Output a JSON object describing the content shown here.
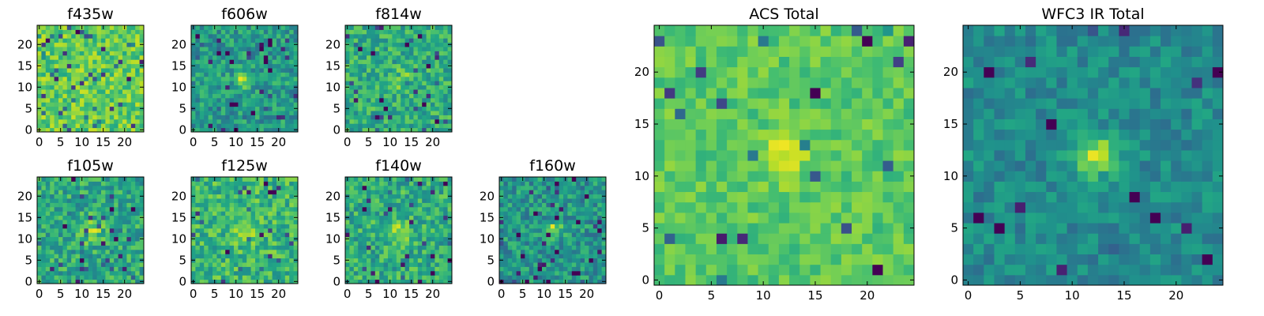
{
  "chart_data": [
    {
      "type": "heatmap",
      "title": "f435w",
      "size": [
        25,
        25
      ],
      "xticks": [
        "0",
        "5",
        "10",
        "15",
        "20"
      ],
      "yticks": [
        "0",
        "5",
        "10",
        "15",
        "20"
      ],
      "xlim": [
        -0.5,
        24.5
      ],
      "ylim": [
        -0.5,
        24.5
      ],
      "colormap": "viridis",
      "noise_level": 0.76,
      "noise_spread": 0.16,
      "noise_dark_fraction": 0.08,
      "peak": {
        "x": 12,
        "y": 12,
        "amplitude": 0.02,
        "sigma": 1.8
      },
      "grid": false
    },
    {
      "type": "heatmap",
      "title": "f606w",
      "size": [
        25,
        25
      ],
      "xticks": [
        "0",
        "5",
        "10",
        "15",
        "20"
      ],
      "yticks": [
        "0",
        "5",
        "10",
        "15",
        "20"
      ],
      "xlim": [
        -0.5,
        24.5
      ],
      "ylim": [
        -0.5,
        24.5
      ],
      "colormap": "viridis",
      "noise_level": 0.54,
      "noise_spread": 0.17,
      "noise_dark_fraction": 0.07,
      "peak": {
        "x": 12,
        "y": 12,
        "amplitude": 0.35,
        "sigma": 1.4
      },
      "grid": false
    },
    {
      "type": "heatmap",
      "title": "f814w",
      "size": [
        25,
        25
      ],
      "xticks": [
        "0",
        "5",
        "10",
        "15",
        "20"
      ],
      "yticks": [
        "0",
        "5",
        "10",
        "15",
        "20"
      ],
      "xlim": [
        -0.5,
        24.5
      ],
      "ylim": [
        -0.5,
        24.5
      ],
      "colormap": "viridis",
      "noise_level": 0.62,
      "noise_spread": 0.17,
      "noise_dark_fraction": 0.06,
      "peak": {
        "x": 12,
        "y": 12,
        "amplitude": 0.3,
        "sigma": 1.4
      },
      "grid": false
    },
    {
      "type": "heatmap",
      "title": "f105w",
      "size": [
        25,
        25
      ],
      "xticks": [
        "0",
        "5",
        "10",
        "15",
        "20"
      ],
      "yticks": [
        "0",
        "5",
        "10",
        "15",
        "20"
      ],
      "xlim": [
        -0.5,
        24.5
      ],
      "ylim": [
        -0.5,
        24.5
      ],
      "colormap": "viridis",
      "noise_level": 0.6,
      "noise_spread": 0.18,
      "noise_dark_fraction": 0.05,
      "peak": {
        "x": 12,
        "y": 12,
        "amplitude": 0.3,
        "sigma": 1.8
      },
      "grid": false
    },
    {
      "type": "heatmap",
      "title": "f125w",
      "size": [
        25,
        25
      ],
      "xticks": [
        "0",
        "5",
        "10",
        "15",
        "20"
      ],
      "yticks": [
        "0",
        "5",
        "10",
        "15",
        "20"
      ],
      "xlim": [
        -0.5,
        24.5
      ],
      "ylim": [
        -0.5,
        24.5
      ],
      "colormap": "viridis",
      "noise_level": 0.66,
      "noise_spread": 0.18,
      "noise_dark_fraction": 0.04,
      "peak": {
        "x": 12,
        "y": 12,
        "amplitude": 0.3,
        "sigma": 1.8
      },
      "grid": false
    },
    {
      "type": "heatmap",
      "title": "f140w",
      "size": [
        25,
        25
      ],
      "xticks": [
        "0",
        "5",
        "10",
        "15",
        "20"
      ],
      "yticks": [
        "0",
        "5",
        "10",
        "15",
        "20"
      ],
      "xlim": [
        -0.5,
        24.5
      ],
      "ylim": [
        -0.5,
        24.5
      ],
      "colormap": "viridis",
      "noise_level": 0.62,
      "noise_spread": 0.18,
      "noise_dark_fraction": 0.06,
      "peak": {
        "x": 12,
        "y": 12,
        "amplitude": 0.3,
        "sigma": 1.8
      },
      "grid": false
    },
    {
      "type": "heatmap",
      "title": "f160w",
      "size": [
        25,
        25
      ],
      "xticks": [
        "0",
        "5",
        "10",
        "15",
        "20"
      ],
      "yticks": [
        "0",
        "5",
        "10",
        "15",
        "20"
      ],
      "xlim": [
        -0.5,
        24.5
      ],
      "ylim": [
        -0.5,
        24.5
      ],
      "colormap": "viridis",
      "noise_level": 0.52,
      "noise_spread": 0.18,
      "noise_dark_fraction": 0.06,
      "peak": {
        "x": 12,
        "y": 12,
        "amplitude": 0.35,
        "sigma": 1.5
      },
      "grid": false
    },
    {
      "type": "heatmap",
      "title": "ACS Total",
      "size": [
        25,
        25
      ],
      "xticks": [
        "0",
        "5",
        "10",
        "15",
        "20"
      ],
      "yticks": [
        "0",
        "5",
        "10",
        "15",
        "20"
      ],
      "xlim": [
        -0.5,
        24.5
      ],
      "ylim": [
        -0.5,
        24.5
      ],
      "colormap": "viridis",
      "noise_level": 0.74,
      "noise_spread": 0.1,
      "noise_dark_fraction": 0.02,
      "peak": {
        "x": 12,
        "y": 12,
        "amplitude": 0.2,
        "sigma": 1.6
      },
      "grid": false
    },
    {
      "type": "heatmap",
      "title": "WFC3 IR Total",
      "size": [
        25,
        25
      ],
      "xticks": [
        "0",
        "5",
        "10",
        "15",
        "20"
      ],
      "yticks": [
        "0",
        "5",
        "10",
        "15",
        "20"
      ],
      "xlim": [
        -0.5,
        24.5
      ],
      "ylim": [
        -0.5,
        24.5
      ],
      "colormap": "viridis",
      "noise_level": 0.48,
      "noise_spread": 0.12,
      "noise_dark_fraction": 0.025,
      "peak": {
        "x": 12,
        "y": 12,
        "amplitude": 0.45,
        "sigma": 1.4
      },
      "grid": false
    }
  ]
}
